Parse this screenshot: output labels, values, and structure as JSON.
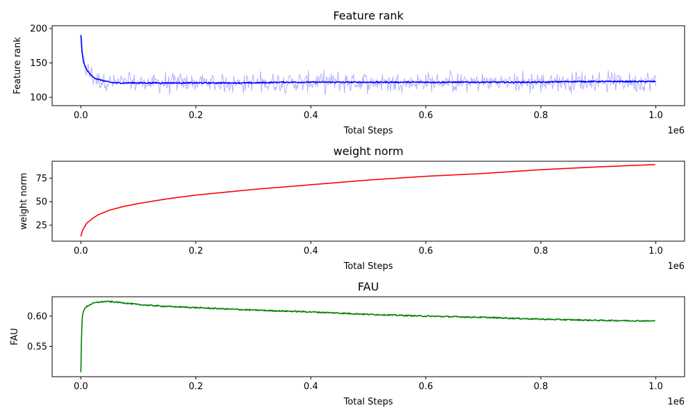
{
  "chart_data": [
    {
      "type": "line",
      "title": "Feature rank",
      "xlabel": "Total Steps",
      "ylabel": "Feature rank",
      "x_offset_label": "1e6",
      "xlim": [
        -50000,
        1050000
      ],
      "ylim": [
        88,
        204
      ],
      "xticks": [
        0,
        200000,
        400000,
        600000,
        800000,
        1000000
      ],
      "xtick_labels": [
        "0.0",
        "0.2",
        "0.4",
        "0.6",
        "0.8",
        "1.0"
      ],
      "yticks": [
        100,
        150,
        200
      ],
      "ytick_labels": [
        "100",
        "150",
        "200"
      ],
      "grid": false,
      "series": [
        {
          "color": "#0000ff",
          "band_color": "#0000ff",
          "x": [
            0,
            2000,
            5000,
            10000,
            15000,
            20000,
            30000,
            40000,
            50000,
            60000,
            80000,
            100000,
            150000,
            200000,
            250000,
            300000,
            350000,
            400000,
            450000,
            500000,
            550000,
            600000,
            650000,
            700000,
            750000,
            800000,
            850000,
            900000,
            950000,
            1000000
          ],
          "values": [
            190,
            165,
            150,
            140,
            135,
            130,
            126,
            124,
            122,
            121,
            121,
            121,
            121,
            121,
            121,
            121,
            122,
            122,
            122,
            122,
            122,
            122,
            122,
            122,
            122,
            122,
            123,
            123,
            123,
            123
          ],
          "band_spread": 12
        }
      ]
    },
    {
      "type": "line",
      "title": "weight norm",
      "xlabel": "Total Steps",
      "ylabel": "weight norm",
      "x_offset_label": "1e6",
      "xlim": [
        -50000,
        1050000
      ],
      "ylim": [
        8,
        93
      ],
      "xticks": [
        0,
        200000,
        400000,
        600000,
        800000,
        1000000
      ],
      "xtick_labels": [
        "0.0",
        "0.2",
        "0.4",
        "0.6",
        "0.8",
        "1.0"
      ],
      "yticks": [
        25,
        50,
        75
      ],
      "ytick_labels": [
        "25",
        "50",
        "75"
      ],
      "grid": false,
      "series": [
        {
          "color": "#ff0000",
          "x": [
            0,
            2000,
            5000,
            10000,
            20000,
            30000,
            50000,
            75000,
            100000,
            150000,
            200000,
            300000,
            400000,
            500000,
            600000,
            700000,
            800000,
            900000,
            1000000
          ],
          "values": [
            13,
            18,
            22,
            27,
            32,
            36,
            41,
            45,
            48,
            53,
            57,
            63,
            68,
            73,
            77,
            80,
            84,
            87,
            89.5
          ]
        }
      ]
    },
    {
      "type": "line",
      "title": "FAU",
      "xlabel": "Total Steps",
      "ylabel": "FAU",
      "x_offset_label": "1e6",
      "xlim": [
        -50000,
        1050000
      ],
      "ylim": [
        0.5,
        0.632
      ],
      "xticks": [
        0,
        200000,
        400000,
        600000,
        800000,
        1000000
      ],
      "xtick_labels": [
        "0.0",
        "0.2",
        "0.4",
        "0.6",
        "0.8",
        "1.0"
      ],
      "yticks": [
        0.55,
        0.6
      ],
      "ytick_labels": [
        "0.55",
        "0.60"
      ],
      "grid": false,
      "series": [
        {
          "color": "#008000",
          "x": [
            0,
            1000,
            2000,
            3000,
            5000,
            10000,
            20000,
            30000,
            40000,
            50000,
            75000,
            100000,
            150000,
            200000,
            300000,
            400000,
            500000,
            600000,
            700000,
            800000,
            900000,
            1000000
          ],
          "values": [
            0.507,
            0.56,
            0.59,
            0.603,
            0.61,
            0.616,
            0.621,
            0.623,
            0.624,
            0.624,
            0.622,
            0.619,
            0.616,
            0.614,
            0.61,
            0.607,
            0.603,
            0.6,
            0.598,
            0.595,
            0.593,
            0.592
          ]
        }
      ]
    }
  ]
}
